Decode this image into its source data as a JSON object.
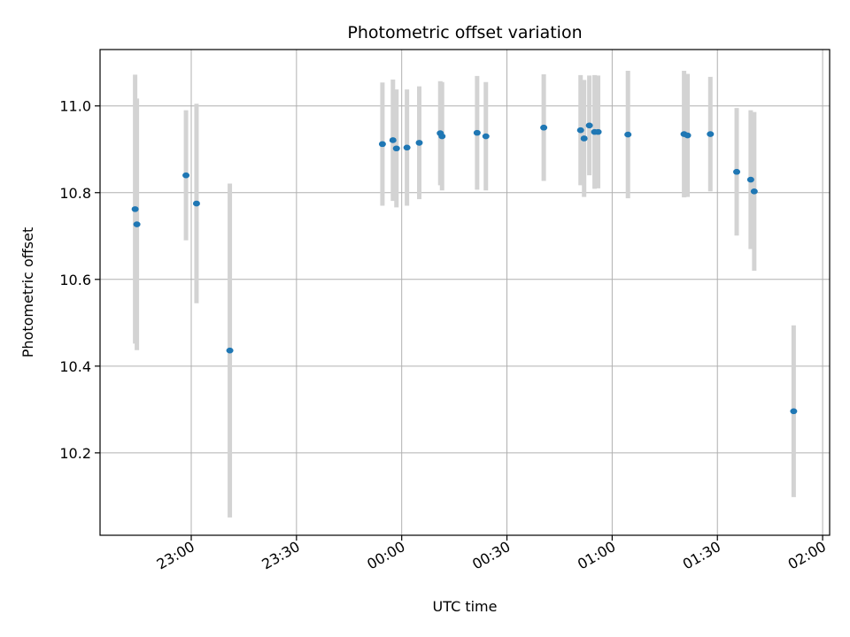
{
  "chart_data": {
    "type": "scatter",
    "title": "Photometric offset variation",
    "xlabel": "UTC time",
    "ylabel": "Photometric offset",
    "x_axis": "time",
    "x_ticks": [
      "23:00",
      "23:30",
      "00:00",
      "00:30",
      "01:00",
      "01:30",
      "02:00"
    ],
    "x_tick_dates": [
      "2000-01-01T23:00",
      "2000-01-01T23:30",
      "2000-01-02T00:00",
      "2000-01-02T00:30",
      "2000-01-02T01:00",
      "2000-01-02T01:30",
      "2000-01-02T02:00"
    ],
    "xlim": [
      "2000-01-01T22:34",
      "2000-01-02T02:02"
    ],
    "y_ticks": [
      "10.2",
      "10.4",
      "10.6",
      "10.8",
      "11.0"
    ],
    "ylim": [
      10.01,
      11.13
    ],
    "grid": true,
    "colors": {
      "point": "#1f77b4",
      "errorbar": "#d3d3d3",
      "grid": "#b0b0b0"
    },
    "points": [
      {
        "t": "2000-01-01T22:44:00",
        "y": 10.762,
        "err": 0.31
      },
      {
        "t": "2000-01-01T22:44:30",
        "y": 10.727,
        "err": 0.29
      },
      {
        "t": "2000-01-01T22:58:30",
        "y": 10.84,
        "err": 0.15
      },
      {
        "t": "2000-01-01T23:01:30",
        "y": 10.775,
        "err": 0.23
      },
      {
        "t": "2000-01-01T23:11:00",
        "y": 10.436,
        "err": 0.385
      },
      {
        "t": "2000-01-01T23:54:30",
        "y": 10.912,
        "err": 0.142
      },
      {
        "t": "2000-01-01T23:57:30",
        "y": 10.921,
        "err": 0.14
      },
      {
        "t": "2000-01-01T23:58:30",
        "y": 10.902,
        "err": 0.136
      },
      {
        "t": "2000-01-02T00:01:30",
        "y": 10.904,
        "err": 0.134
      },
      {
        "t": "2000-01-02T00:05:00",
        "y": 10.915,
        "err": 0.13
      },
      {
        "t": "2000-01-02T00:11:00",
        "y": 10.937,
        "err": 0.12
      },
      {
        "t": "2000-01-02T00:11:30",
        "y": 10.93,
        "err": 0.125
      },
      {
        "t": "2000-01-02T00:21:30",
        "y": 10.938,
        "err": 0.131
      },
      {
        "t": "2000-01-02T00:24:00",
        "y": 10.93,
        "err": 0.125
      },
      {
        "t": "2000-01-02T00:40:30",
        "y": 10.95,
        "err": 0.123
      },
      {
        "t": "2000-01-02T00:51:00",
        "y": 10.944,
        "err": 0.127
      },
      {
        "t": "2000-01-02T00:52:00",
        "y": 10.925,
        "err": 0.135
      },
      {
        "t": "2000-01-02T00:53:30",
        "y": 10.955,
        "err": 0.115
      },
      {
        "t": "2000-01-02T00:55:00",
        "y": 10.94,
        "err": 0.131
      },
      {
        "t": "2000-01-02T00:56:00",
        "y": 10.94,
        "err": 0.13
      },
      {
        "t": "2000-01-02T01:04:30",
        "y": 10.934,
        "err": 0.147
      },
      {
        "t": "2000-01-02T01:20:30",
        "y": 10.935,
        "err": 0.146
      },
      {
        "t": "2000-01-02T01:21:30",
        "y": 10.932,
        "err": 0.142
      },
      {
        "t": "2000-01-02T01:28:00",
        "y": 10.935,
        "err": 0.132
      },
      {
        "t": "2000-01-02T01:35:30",
        "y": 10.848,
        "err": 0.147
      },
      {
        "t": "2000-01-02T01:39:30",
        "y": 10.83,
        "err": 0.16
      },
      {
        "t": "2000-01-02T01:40:30",
        "y": 10.803,
        "err": 0.183
      },
      {
        "t": "2000-01-02T01:51:45",
        "y": 10.296,
        "err": 0.198
      }
    ]
  }
}
